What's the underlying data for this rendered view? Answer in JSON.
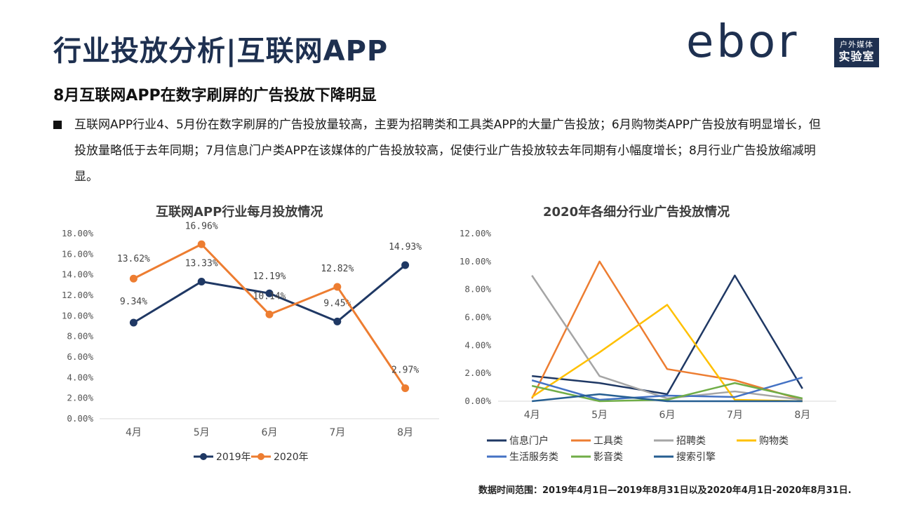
{
  "header": {
    "title": "行业投放分析|互联网APP",
    "logo_word": "ebor",
    "logo_tag_top": "户外媒体",
    "logo_tag_bottom": "实验室"
  },
  "subtitle": "8月互联网APP在数字刷屏的广告投放下降明显",
  "bullet": "互联网APP行业4、5月份在数字刷屏的广告投放量较高，主要为招聘类和工具类APP的大量广告投放；6月购物类APP广告投放有明显增长，但投放量略低于去年同期；7月信息门户类APP在该媒体的广告投放较高，促使行业广告投放较去年同期有小幅度增长；8月行业广告投放缩减明显。",
  "footnote": "数据时间范围：2019年4月1日—2019年8月31日以及2020年4月1日-2020年8月31日.",
  "colors": {
    "navy": "#1f3864",
    "orange": "#ed7d31",
    "gray": "#a5a5a5",
    "yellow": "#ffc000",
    "blue": "#4472c4",
    "green": "#70ad47",
    "darkblue": "#255e91"
  },
  "chart_data": [
    {
      "type": "line",
      "title": "互联网APP行业每月投放情况",
      "categories": [
        "4月",
        "5月",
        "6月",
        "7月",
        "8月"
      ],
      "ylim": [
        0,
        18
      ],
      "yticks": [
        "0.00%",
        "2.00%",
        "4.00%",
        "6.00%",
        "8.00%",
        "10.00%",
        "12.00%",
        "14.00%",
        "16.00%",
        "18.00%"
      ],
      "series": [
        {
          "name": "2019年",
          "color": "#1f3864",
          "values": [
            9.34,
            13.33,
            12.19,
            9.45,
            14.93
          ],
          "labels": [
            "9.34%",
            "13.33%",
            "12.19%",
            "9.45%",
            "14.93%"
          ]
        },
        {
          "name": "2020年",
          "color": "#ed7d31",
          "values": [
            13.62,
            16.96,
            10.14,
            12.82,
            2.97
          ],
          "labels": [
            "13.62%",
            "16.96%",
            "10.14%",
            "12.82%",
            "2.97%"
          ]
        }
      ],
      "legend": "bottom"
    },
    {
      "type": "line",
      "title": "2020年各细分行业广告投放情况",
      "categories": [
        "4月",
        "5月",
        "6月",
        "7月",
        "8月"
      ],
      "ylim": [
        0,
        12
      ],
      "yticks": [
        "0.00%",
        "2.00%",
        "4.00%",
        "6.00%",
        "8.00%",
        "10.00%",
        "12.00%"
      ],
      "series": [
        {
          "name": "信息门户",
          "color": "#1f3864",
          "values": [
            1.8,
            1.3,
            0.5,
            9.0,
            0.9
          ]
        },
        {
          "name": "工具类",
          "color": "#ed7d31",
          "values": [
            0.2,
            10.0,
            2.3,
            1.5,
            0.1
          ]
        },
        {
          "name": "招聘类",
          "color": "#a5a5a5",
          "values": [
            9.0,
            1.8,
            0.2,
            0.7,
            0.1
          ]
        },
        {
          "name": "购物类",
          "color": "#ffc000",
          "values": [
            0.3,
            3.5,
            6.9,
            0.1,
            0.0
          ]
        },
        {
          "name": "生活服务类",
          "color": "#4472c4",
          "values": [
            1.5,
            0.1,
            0.4,
            0.3,
            1.7
          ]
        },
        {
          "name": "影音类",
          "color": "#70ad47",
          "values": [
            1.1,
            0.0,
            0.1,
            1.3,
            0.2
          ]
        },
        {
          "name": "搜索引擎",
          "color": "#255e91",
          "values": [
            0.0,
            0.5,
            0.0,
            0.0,
            0.0
          ]
        }
      ],
      "legend": "bottom"
    }
  ]
}
